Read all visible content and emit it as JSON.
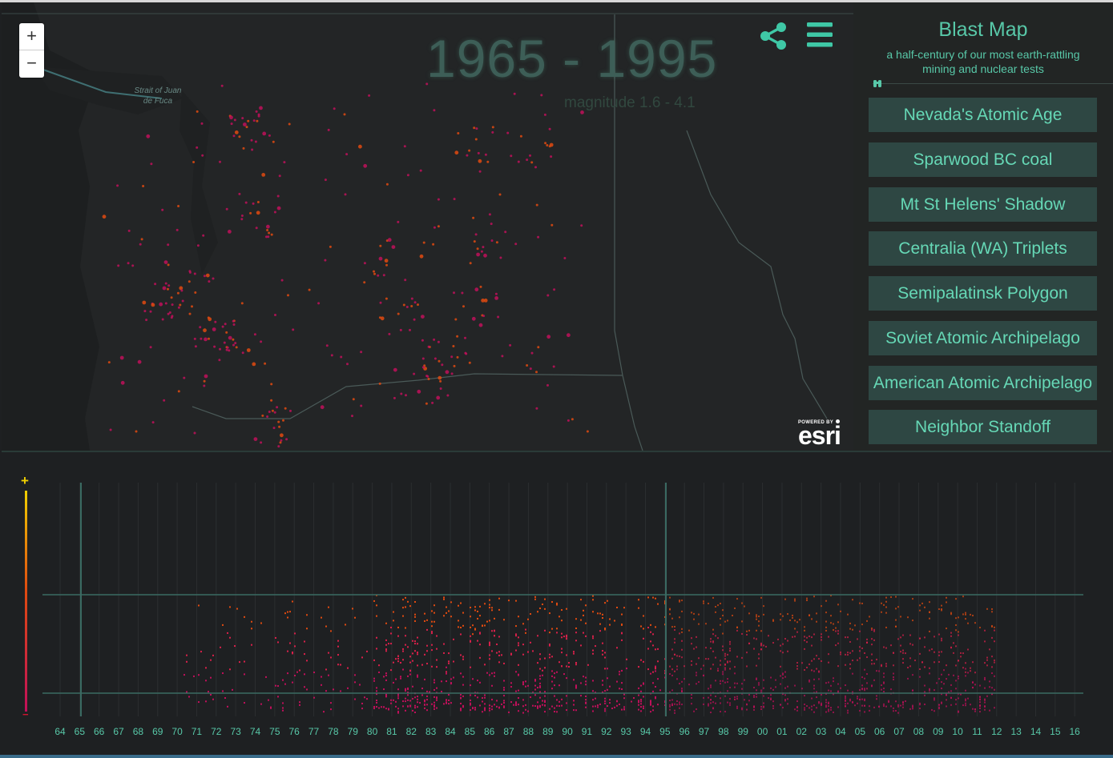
{
  "map": {
    "year_range": "1965 - 1995",
    "magnitude_range": "magnitude 1.6 - 4.1",
    "water_label": "Strait of Juan de Fuca",
    "zoom_in_label": "+",
    "zoom_out_label": "−",
    "attribution_top": "POWERED BY",
    "attribution_word": "esri",
    "icons": [
      "share-icon",
      "menu-icon",
      "binoculars-icon"
    ]
  },
  "panel": {
    "title": "Blast Map",
    "subtitle": "a half-century of our most earth-rattling mining and nuclear tests",
    "stories": [
      "Nevada's Atomic Age",
      "Sparwood BC coal",
      "Mt St Helens' Shadow",
      "Centralia (WA) Triplets",
      "Semipalatinsk Polygon",
      "Soviet Atomic Archipelago",
      "American Atomic Archipelago",
      "Neighbor Standoff"
    ]
  },
  "timeline": {
    "years": [
      "64",
      "65",
      "66",
      "67",
      "68",
      "69",
      "70",
      "71",
      "72",
      "73",
      "74",
      "75",
      "76",
      "77",
      "78",
      "79",
      "80",
      "81",
      "82",
      "83",
      "84",
      "85",
      "86",
      "87",
      "88",
      "89",
      "90",
      "91",
      "92",
      "93",
      "94",
      "95",
      "96",
      "97",
      "98",
      "99",
      "00",
      "01",
      "02",
      "03",
      "04",
      "05",
      "06",
      "07",
      "08",
      "09",
      "10",
      "11",
      "12",
      "13",
      "14",
      "15",
      "16"
    ],
    "selection": {
      "start": "65",
      "end": "95"
    },
    "magnitude_scale": {
      "high_label": "+",
      "low_label": "−"
    },
    "colors": {
      "high": "#f0d000",
      "mid": "#e04a10",
      "low": "#c0105a",
      "accent": "#58c8a8"
    }
  }
}
